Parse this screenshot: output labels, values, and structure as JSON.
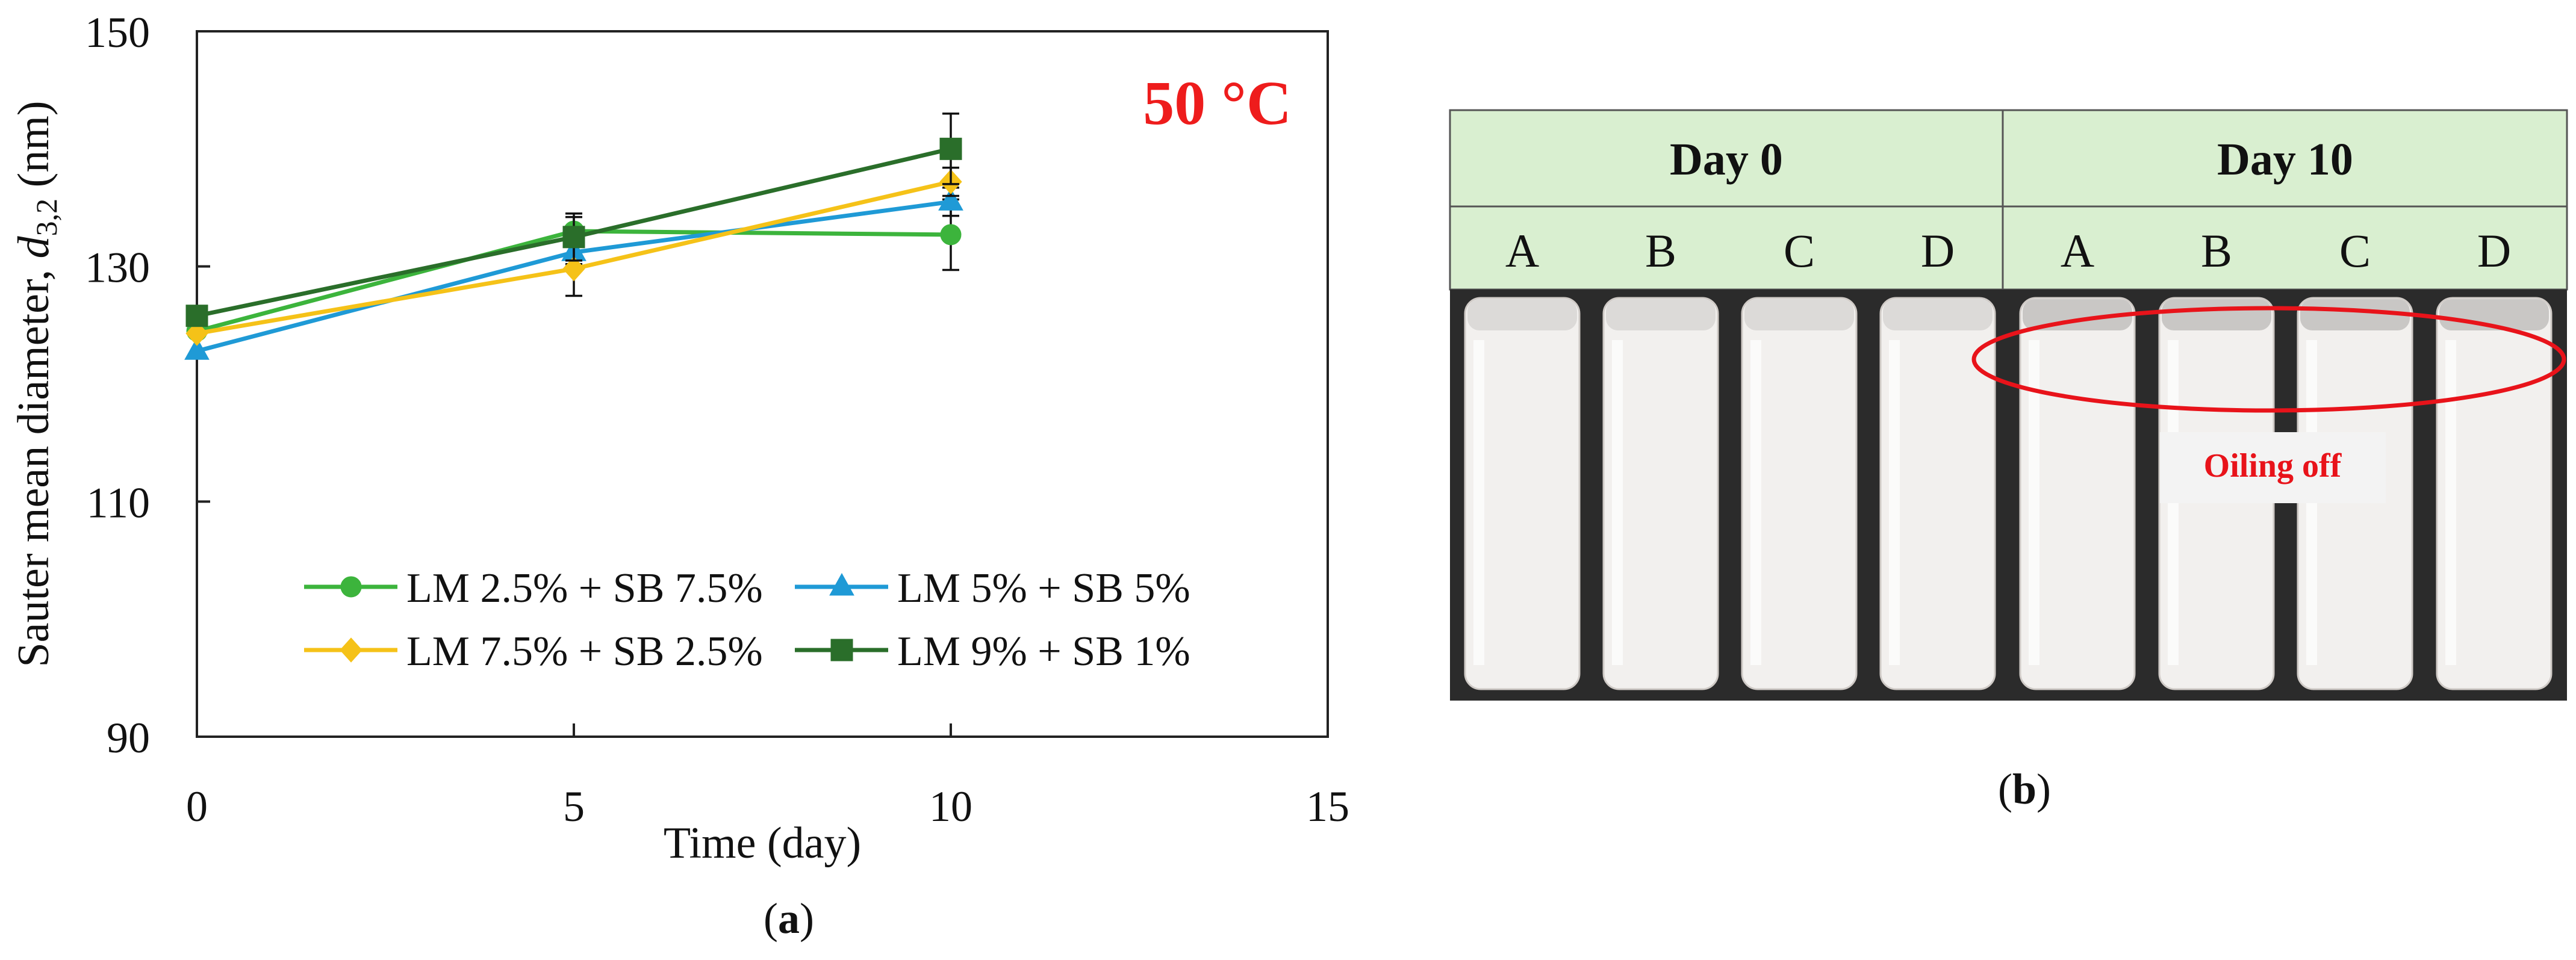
{
  "chart_data": {
    "type": "line",
    "title": "50 °C",
    "xlabel": "Time (day)",
    "ylabel_prefix": "Sauter mean diameter, ",
    "ylabel_var": "d",
    "ylabel_sub": "3,2",
    "ylabel_unit": " (nm)",
    "xlim": [
      0,
      15
    ],
    "ylim": [
      90,
      150
    ],
    "xticks": [
      "0",
      "5",
      "10",
      "15"
    ],
    "yticks": [
      "90",
      "110",
      "130",
      "150"
    ],
    "grid": false,
    "legend_position": "bottom-center",
    "series": [
      {
        "name": "LM 2.5% + SB 7.5%",
        "color": "#3cb43c",
        "marker": "circle",
        "x": [
          0,
          5,
          10
        ],
        "y": [
          124.5,
          133,
          132.7
        ],
        "err": [
          0,
          1.2,
          3.0
        ]
      },
      {
        "name": "LM 5% + SB 5%",
        "color": "#1f9ad6",
        "marker": "triangle",
        "x": [
          0,
          5,
          10
        ],
        "y": [
          122.8,
          131.2,
          135.5
        ],
        "err": [
          0,
          1.0,
          1.2
        ]
      },
      {
        "name": "LM 7.5% + SB 2.5%",
        "color": "#f5c218",
        "marker": "diamond",
        "x": [
          0,
          5,
          10
        ],
        "y": [
          124.3,
          129.8,
          137.2
        ],
        "err": [
          0,
          2.3,
          1.2
        ]
      },
      {
        "name": "LM 9% + SB 1%",
        "color": "#2a6e2a",
        "marker": "square",
        "x": [
          0,
          5,
          10
        ],
        "y": [
          125.8,
          132.5,
          140
        ],
        "err": [
          0,
          2.0,
          3.0
        ]
      }
    ]
  },
  "panel_a_label": "a",
  "panel_b_label": "b",
  "photo": {
    "day_labels": [
      "Day 0",
      "Day 10"
    ],
    "sample_labels": [
      "A",
      "B",
      "C",
      "D",
      "A",
      "B",
      "C",
      "D"
    ],
    "annotation": "Oiling off",
    "header_color": "#d9efd0",
    "annotation_color": "#e8131a"
  }
}
